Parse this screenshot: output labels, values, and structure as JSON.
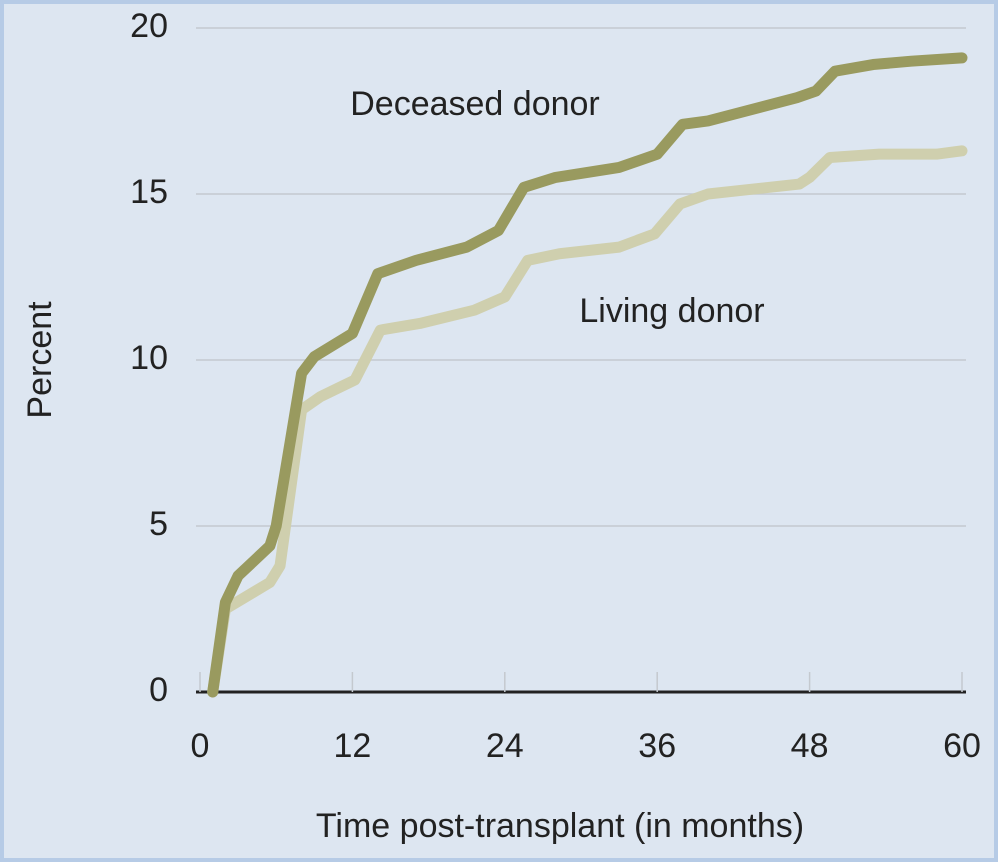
{
  "chart_data": {
    "type": "line",
    "x_label": "Time post-transplant (in months)",
    "y_label": "Percent",
    "xlim": [
      0,
      60
    ],
    "xticks": [
      0,
      12,
      24,
      36,
      48,
      60
    ],
    "ylim": [
      0,
      20
    ],
    "yticks": [
      0,
      5,
      10,
      15,
      20
    ],
    "grid": true,
    "series": [
      {
        "name": "Deceased donor",
        "color": "#999a5f",
        "x": [
          1,
          2,
          3,
          5.5,
          6,
          8,
          9,
          12,
          14,
          17,
          21,
          23.5,
          25.5,
          28,
          33,
          36,
          38,
          40,
          47,
          48.5,
          50,
          53,
          56,
          60
        ],
        "values": [
          0,
          2.7,
          3.5,
          4.4,
          5.0,
          9.6,
          10.1,
          10.8,
          12.6,
          13.0,
          13.4,
          13.9,
          15.2,
          15.5,
          15.8,
          16.2,
          17.1,
          17.2,
          17.9,
          18.1,
          18.7,
          18.9,
          19.0,
          19.1
        ]
      },
      {
        "name": "Living donor",
        "color": "#cfcfae",
        "x": [
          1,
          2,
          5.5,
          6.3,
          8,
          9.5,
          12.2,
          14.2,
          17.3,
          21.6,
          24,
          25.8,
          28.3,
          33,
          35.8,
          37.8,
          40,
          47.2,
          48,
          49.6,
          53.5,
          58,
          60
        ],
        "values": [
          0,
          2.5,
          3.3,
          3.8,
          8.5,
          8.9,
          9.4,
          10.9,
          11.1,
          11.5,
          11.9,
          13.0,
          13.2,
          13.4,
          13.8,
          14.7,
          15.0,
          15.3,
          15.5,
          16.1,
          16.2,
          16.2,
          16.3
        ]
      }
    ]
  }
}
